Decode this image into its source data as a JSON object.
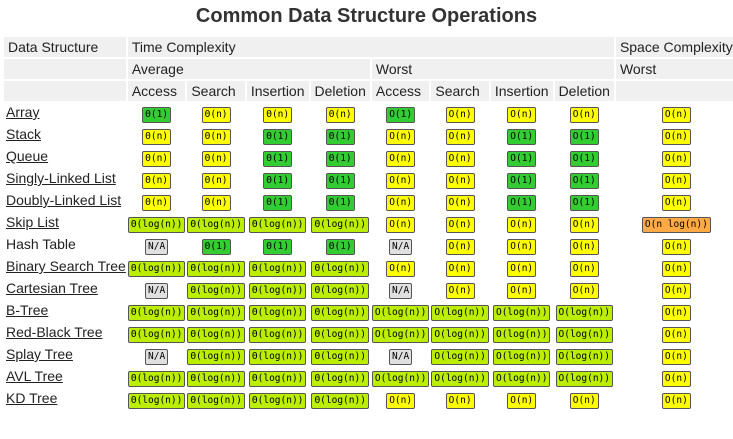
{
  "title": "Common Data Structure Operations",
  "headers": {
    "data_structure": "Data Structure",
    "time_complexity": "Time Complexity",
    "space_complexity": "Space Complexity",
    "average": "Average",
    "worst": "Worst",
    "worst_space": "Worst",
    "ops": [
      "Access",
      "Search",
      "Insertion",
      "Deletion",
      "Access",
      "Search",
      "Insertion",
      "Deletion"
    ]
  },
  "colors": {
    "green": "#33cc33",
    "yellow": "#ffff00",
    "yellow-green": "#bbee00",
    "orange": "#ffaa44",
    "gray": "#e0e0e0"
  },
  "rows": [
    {
      "name": "Array",
      "link": true,
      "cells": [
        [
          "Θ(1)",
          "green"
        ],
        [
          "Θ(n)",
          "yellow"
        ],
        [
          "Θ(n)",
          "yellow"
        ],
        [
          "Θ(n)",
          "yellow"
        ],
        [
          "O(1)",
          "green"
        ],
        [
          "O(n)",
          "yellow"
        ],
        [
          "O(n)",
          "yellow"
        ],
        [
          "O(n)",
          "yellow"
        ],
        [
          "O(n)",
          "yellow"
        ]
      ]
    },
    {
      "name": "Stack",
      "link": true,
      "cells": [
        [
          "Θ(n)",
          "yellow"
        ],
        [
          "Θ(n)",
          "yellow"
        ],
        [
          "Θ(1)",
          "green"
        ],
        [
          "Θ(1)",
          "green"
        ],
        [
          "O(n)",
          "yellow"
        ],
        [
          "O(n)",
          "yellow"
        ],
        [
          "O(1)",
          "green"
        ],
        [
          "O(1)",
          "green"
        ],
        [
          "O(n)",
          "yellow"
        ]
      ]
    },
    {
      "name": "Queue",
      "link": true,
      "cells": [
        [
          "Θ(n)",
          "yellow"
        ],
        [
          "Θ(n)",
          "yellow"
        ],
        [
          "Θ(1)",
          "green"
        ],
        [
          "Θ(1)",
          "green"
        ],
        [
          "O(n)",
          "yellow"
        ],
        [
          "O(n)",
          "yellow"
        ],
        [
          "O(1)",
          "green"
        ],
        [
          "O(1)",
          "green"
        ],
        [
          "O(n)",
          "yellow"
        ]
      ]
    },
    {
      "name": "Singly-Linked List",
      "link": true,
      "cells": [
        [
          "Θ(n)",
          "yellow"
        ],
        [
          "Θ(n)",
          "yellow"
        ],
        [
          "Θ(1)",
          "green"
        ],
        [
          "Θ(1)",
          "green"
        ],
        [
          "O(n)",
          "yellow"
        ],
        [
          "O(n)",
          "yellow"
        ],
        [
          "O(1)",
          "green"
        ],
        [
          "O(1)",
          "green"
        ],
        [
          "O(n)",
          "yellow"
        ]
      ]
    },
    {
      "name": "Doubly-Linked List",
      "link": true,
      "cells": [
        [
          "Θ(n)",
          "yellow"
        ],
        [
          "Θ(n)",
          "yellow"
        ],
        [
          "Θ(1)",
          "green"
        ],
        [
          "Θ(1)",
          "green"
        ],
        [
          "O(n)",
          "yellow"
        ],
        [
          "O(n)",
          "yellow"
        ],
        [
          "O(1)",
          "green"
        ],
        [
          "O(1)",
          "green"
        ],
        [
          "O(n)",
          "yellow"
        ]
      ]
    },
    {
      "name": "Skip List",
      "link": true,
      "cells": [
        [
          "Θ(log(n))",
          "yg"
        ],
        [
          "Θ(log(n))",
          "yg"
        ],
        [
          "Θ(log(n))",
          "yg"
        ],
        [
          "Θ(log(n))",
          "yg"
        ],
        [
          "O(n)",
          "yellow"
        ],
        [
          "O(n)",
          "yellow"
        ],
        [
          "O(n)",
          "yellow"
        ],
        [
          "O(n)",
          "yellow"
        ],
        [
          "O(n log(n))",
          "orange"
        ]
      ]
    },
    {
      "name": "Hash Table",
      "link": false,
      "cells": [
        [
          "N/A",
          "gray"
        ],
        [
          "Θ(1)",
          "green"
        ],
        [
          "Θ(1)",
          "green"
        ],
        [
          "Θ(1)",
          "green"
        ],
        [
          "N/A",
          "gray"
        ],
        [
          "O(n)",
          "yellow"
        ],
        [
          "O(n)",
          "yellow"
        ],
        [
          "O(n)",
          "yellow"
        ],
        [
          "O(n)",
          "yellow"
        ]
      ]
    },
    {
      "name": "Binary Search Tree",
      "link": true,
      "cells": [
        [
          "Θ(log(n))",
          "yg"
        ],
        [
          "Θ(log(n))",
          "yg"
        ],
        [
          "Θ(log(n))",
          "yg"
        ],
        [
          "Θ(log(n))",
          "yg"
        ],
        [
          "O(n)",
          "yellow"
        ],
        [
          "O(n)",
          "yellow"
        ],
        [
          "O(n)",
          "yellow"
        ],
        [
          "O(n)",
          "yellow"
        ],
        [
          "O(n)",
          "yellow"
        ]
      ]
    },
    {
      "name": "Cartesian Tree",
      "link": true,
      "cells": [
        [
          "N/A",
          "gray"
        ],
        [
          "Θ(log(n))",
          "yg"
        ],
        [
          "Θ(log(n))",
          "yg"
        ],
        [
          "Θ(log(n))",
          "yg"
        ],
        [
          "N/A",
          "gray"
        ],
        [
          "O(n)",
          "yellow"
        ],
        [
          "O(n)",
          "yellow"
        ],
        [
          "O(n)",
          "yellow"
        ],
        [
          "O(n)",
          "yellow"
        ]
      ]
    },
    {
      "name": "B-Tree",
      "link": true,
      "cells": [
        [
          "Θ(log(n))",
          "yg"
        ],
        [
          "Θ(log(n))",
          "yg"
        ],
        [
          "Θ(log(n))",
          "yg"
        ],
        [
          "Θ(log(n))",
          "yg"
        ],
        [
          "O(log(n))",
          "yg"
        ],
        [
          "O(log(n))",
          "yg"
        ],
        [
          "O(log(n))",
          "yg"
        ],
        [
          "O(log(n))",
          "yg"
        ],
        [
          "O(n)",
          "yellow"
        ]
      ]
    },
    {
      "name": "Red-Black Tree",
      "link": true,
      "cells": [
        [
          "Θ(log(n))",
          "yg"
        ],
        [
          "Θ(log(n))",
          "yg"
        ],
        [
          "Θ(log(n))",
          "yg"
        ],
        [
          "Θ(log(n))",
          "yg"
        ],
        [
          "O(log(n))",
          "yg"
        ],
        [
          "O(log(n))",
          "yg"
        ],
        [
          "O(log(n))",
          "yg"
        ],
        [
          "O(log(n))",
          "yg"
        ],
        [
          "O(n)",
          "yellow"
        ]
      ]
    },
    {
      "name": "Splay Tree",
      "link": true,
      "cells": [
        [
          "N/A",
          "gray"
        ],
        [
          "Θ(log(n))",
          "yg"
        ],
        [
          "Θ(log(n))",
          "yg"
        ],
        [
          "Θ(log(n))",
          "yg"
        ],
        [
          "N/A",
          "gray"
        ],
        [
          "O(log(n))",
          "yg"
        ],
        [
          "O(log(n))",
          "yg"
        ],
        [
          "O(log(n))",
          "yg"
        ],
        [
          "O(n)",
          "yellow"
        ]
      ]
    },
    {
      "name": "AVL Tree",
      "link": true,
      "cells": [
        [
          "Θ(log(n))",
          "yg"
        ],
        [
          "Θ(log(n))",
          "yg"
        ],
        [
          "Θ(log(n))",
          "yg"
        ],
        [
          "Θ(log(n))",
          "yg"
        ],
        [
          "O(log(n))",
          "yg"
        ],
        [
          "O(log(n))",
          "yg"
        ],
        [
          "O(log(n))",
          "yg"
        ],
        [
          "O(log(n))",
          "yg"
        ],
        [
          "O(n)",
          "yellow"
        ]
      ]
    },
    {
      "name": "KD Tree",
      "link": true,
      "cells": [
        [
          "Θ(log(n))",
          "yg"
        ],
        [
          "Θ(log(n))",
          "yg"
        ],
        [
          "Θ(log(n))",
          "yg"
        ],
        [
          "Θ(log(n))",
          "yg"
        ],
        [
          "O(n)",
          "yellow"
        ],
        [
          "O(n)",
          "yellow"
        ],
        [
          "O(n)",
          "yellow"
        ],
        [
          "O(n)",
          "yellow"
        ],
        [
          "O(n)",
          "yellow"
        ]
      ]
    }
  ]
}
